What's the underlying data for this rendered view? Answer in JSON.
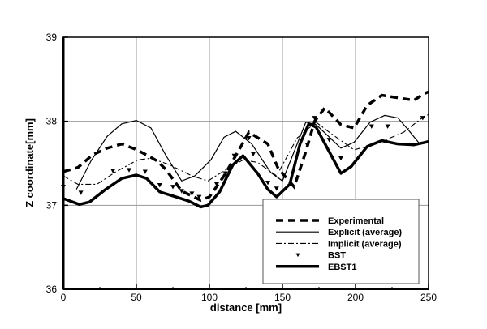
{
  "chart_data": {
    "type": "line",
    "title": "",
    "xlabel": "distance [mm]",
    "ylabel": "Z coordinate[mm]",
    "xlim": [
      0,
      250
    ],
    "ylim": [
      36,
      39
    ],
    "xticks": [
      "0",
      "50",
      "100",
      "150",
      "200",
      "250"
    ],
    "yticks": [
      "36",
      "37",
      "38",
      "39"
    ],
    "grid": true,
    "legend_position": "bottom-right",
    "series": [
      {
        "name": "Experimental",
        "style": "dashed-thick",
        "x": [
          0,
          10,
          20,
          30,
          40,
          49,
          57,
          64,
          70,
          81,
          94,
          100,
          110,
          120,
          127,
          140,
          147,
          158,
          166,
          172,
          179,
          190,
          199,
          208,
          218,
          229,
          240,
          247,
          250
        ],
        "y": [
          37.4,
          37.45,
          37.6,
          37.68,
          37.73,
          37.67,
          37.6,
          37.53,
          37.43,
          37.17,
          37.06,
          37.1,
          37.35,
          37.65,
          37.87,
          37.73,
          37.44,
          37.22,
          37.64,
          38.0,
          38.16,
          37.96,
          37.92,
          38.19,
          38.31,
          38.28,
          38.25,
          38.33,
          38.35
        ]
      },
      {
        "name": "Explicit (average)",
        "style": "solid-thin",
        "x": [
          9,
          19,
          30,
          40,
          50,
          60,
          70,
          81,
          90,
          101,
          110,
          118,
          129,
          142,
          150,
          158,
          166,
          173,
          190,
          199,
          210,
          220,
          229,
          236,
          244
        ],
        "y": [
          37.19,
          37.53,
          37.82,
          37.97,
          38.01,
          37.92,
          37.6,
          37.29,
          37.35,
          37.54,
          37.81,
          37.88,
          37.73,
          37.39,
          37.29,
          37.64,
          37.99,
          37.96,
          37.68,
          37.75,
          37.99,
          38.07,
          38.04,
          37.9,
          37.73
        ]
      },
      {
        "name": "Implicit (average)",
        "style": "dash-dot",
        "x": [
          0,
          10,
          23,
          36,
          51,
          60,
          73,
          88,
          99,
          110,
          123,
          133,
          146,
          160,
          173,
          182,
          199,
          214,
          233,
          247,
          250
        ],
        "y": [
          37.35,
          37.25,
          37.25,
          37.4,
          37.54,
          37.56,
          37.48,
          37.35,
          37.29,
          37.41,
          37.54,
          37.51,
          37.35,
          37.8,
          37.99,
          37.87,
          37.66,
          37.73,
          37.87,
          38.06,
          38.08
        ]
      },
      {
        "name": "BST",
        "style": "triangle-markers",
        "x": [
          0,
          12,
          34,
          45,
          56,
          66,
          75,
          81,
          88,
          93,
          105,
          111,
          117,
          127,
          130,
          140,
          146,
          167,
          172,
          182,
          190,
          211,
          222,
          246
        ],
        "y": [
          37.22,
          37.15,
          37.41,
          37.42,
          37.4,
          37.24,
          37.22,
          37.17,
          37.14,
          37.1,
          37.25,
          37.38,
          37.59,
          37.8,
          37.61,
          37.27,
          37.2,
          37.72,
          38.04,
          37.78,
          37.56,
          37.94,
          37.94,
          38.04
        ]
      },
      {
        "name": "EBST1",
        "style": "solid-thick",
        "x": [
          0,
          11,
          18,
          29,
          40,
          50,
          57,
          66,
          77,
          86,
          94,
          99,
          107,
          116,
          123,
          133,
          140,
          146,
          155,
          162,
          168,
          173,
          181,
          190,
          197,
          208,
          218,
          229,
          240,
          248,
          250
        ],
        "y": [
          37.08,
          37.01,
          37.04,
          37.19,
          37.32,
          37.36,
          37.32,
          37.16,
          37.1,
          37.05,
          36.98,
          37.0,
          37.16,
          37.48,
          37.59,
          37.38,
          37.19,
          37.1,
          37.25,
          37.73,
          37.97,
          37.93,
          37.67,
          37.38,
          37.46,
          37.7,
          37.77,
          37.73,
          37.72,
          37.75,
          37.76
        ]
      }
    ]
  }
}
